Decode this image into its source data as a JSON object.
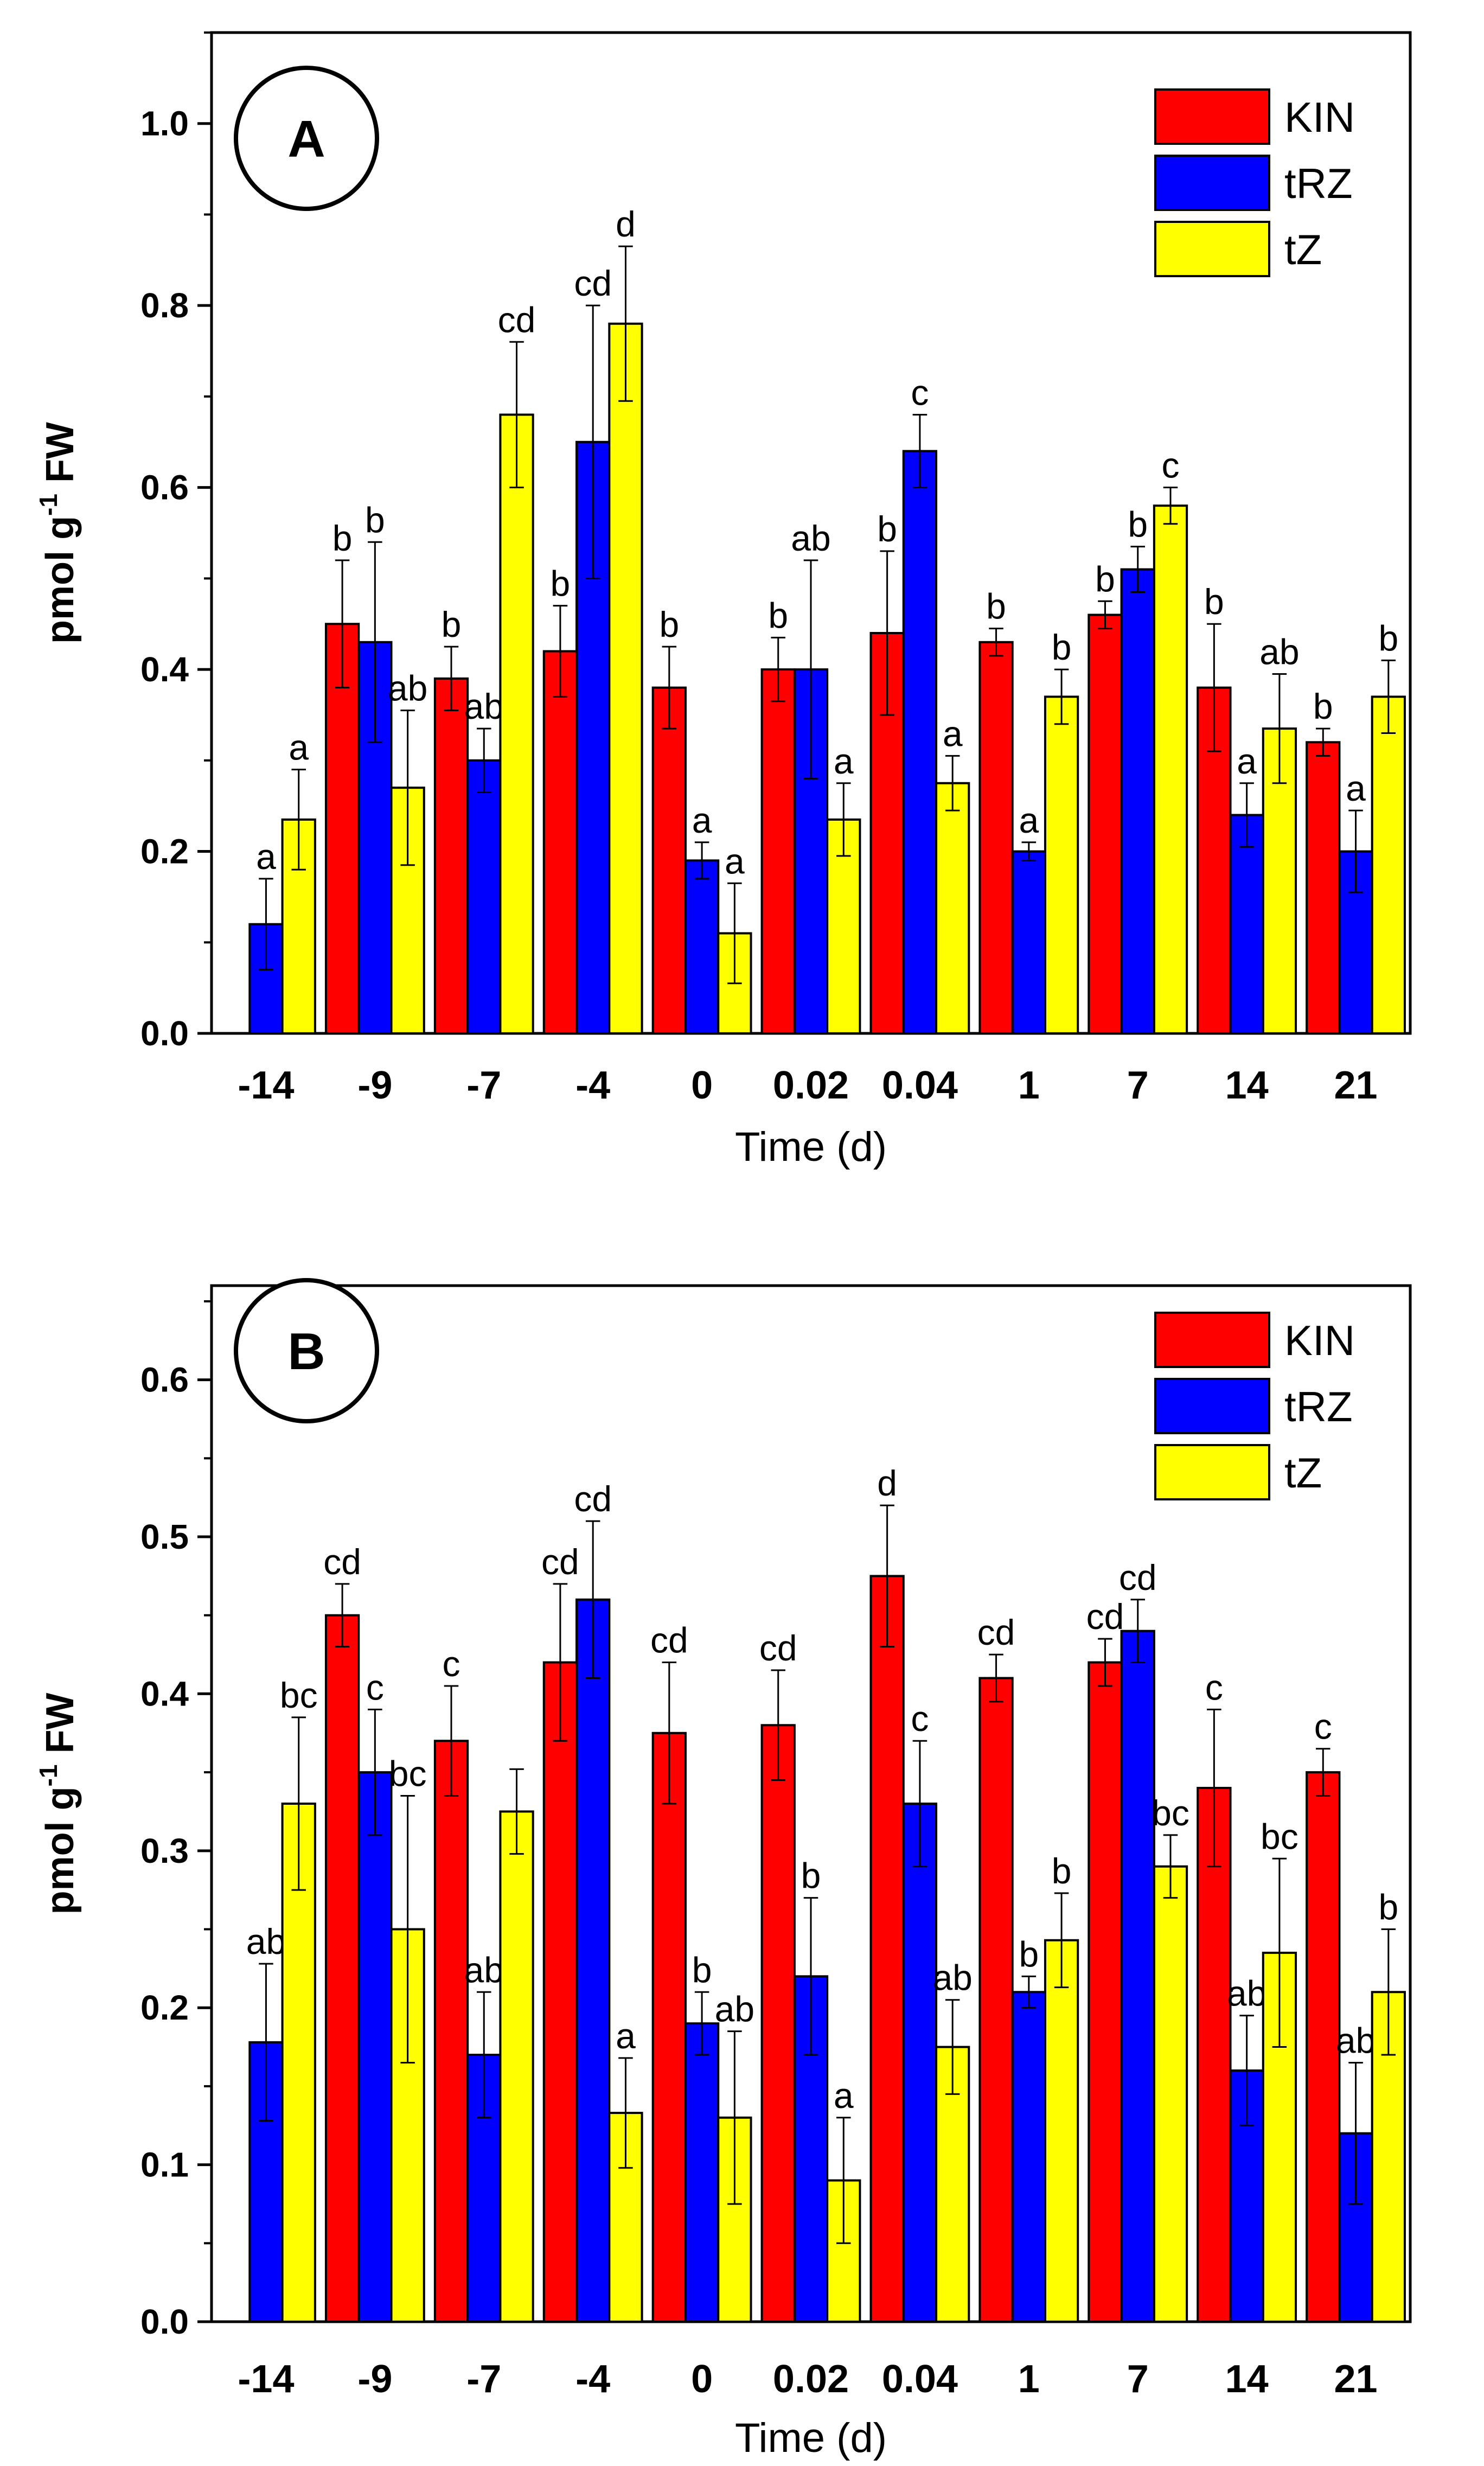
{
  "chart_data": [
    {
      "type": "bar",
      "panel": "A",
      "categories": [
        "-14",
        "-9",
        "-7",
        "-4",
        "0",
        "0.02",
        "0.04",
        "1",
        "7",
        "14",
        "21"
      ],
      "xlabel": "Time (d)",
      "ylabel_main": "pmol g",
      "ylabel_sup": "-1",
      "ylabel_tail": " FW",
      "ylim": [
        0,
        1.1
      ],
      "yticks": [
        0.0,
        0.2,
        0.4,
        0.6,
        0.8,
        1.0
      ],
      "ytick_labels": [
        "0.0",
        "0.2",
        "0.4",
        "0.6",
        "0.8",
        "1.0"
      ],
      "legend_position": "top-right",
      "series": [
        {
          "name": "KIN",
          "color": "#ff0000",
          "values": [
            null,
            0.45,
            0.39,
            0.42,
            0.38,
            0.4,
            0.44,
            0.43,
            0.46,
            0.38,
            0.32
          ],
          "errors": [
            null,
            0.07,
            0.035,
            0.05,
            0.045,
            0.035,
            0.09,
            0.015,
            0.015,
            0.07,
            0.015
          ],
          "labels": [
            "",
            "b",
            "b",
            "b",
            "b",
            "b",
            "b",
            "b",
            "b",
            "b",
            "b"
          ]
        },
        {
          "name": "tRZ",
          "color": "#0000ff",
          "values": [
            0.12,
            0.43,
            0.3,
            0.65,
            0.19,
            0.4,
            0.64,
            0.2,
            0.51,
            0.24,
            0.2
          ],
          "errors": [
            0.05,
            0.11,
            0.035,
            0.15,
            0.02,
            0.12,
            0.04,
            0.01,
            0.025,
            0.035,
            0.045
          ],
          "labels": [
            "a",
            "b",
            "ab",
            "cd",
            "a",
            "ab",
            "c",
            "a",
            "b",
            "a",
            "a"
          ]
        },
        {
          "name": "tZ",
          "color": "#ffff00",
          "values": [
            0.235,
            0.27,
            0.68,
            0.78,
            0.11,
            0.235,
            0.275,
            0.37,
            0.58,
            0.335,
            0.37
          ],
          "errors": [
            0.055,
            0.085,
            0.08,
            0.085,
            0.055,
            0.04,
            0.03,
            0.03,
            0.02,
            0.06,
            0.04
          ],
          "labels": [
            "a",
            "ab",
            "cd",
            "d",
            "a",
            "a",
            "a",
            "b",
            "c",
            "ab",
            "b"
          ]
        }
      ]
    },
    {
      "type": "bar",
      "panel": "B",
      "categories": [
        "-14",
        "-9",
        "-7",
        "-4",
        "0",
        "0.02",
        "0.04",
        "1",
        "7",
        "14",
        "21"
      ],
      "xlabel": "Time (d)",
      "ylabel_main": "pmol g",
      "ylabel_sup": "-1",
      "ylabel_tail": " FW",
      "ylim": [
        0,
        0.66
      ],
      "yticks": [
        0.0,
        0.1,
        0.2,
        0.3,
        0.4,
        0.5,
        0.6
      ],
      "ytick_labels": [
        "0.0",
        "0.1",
        "0.2",
        "0.3",
        "0.4",
        "0.5",
        "0.6"
      ],
      "legend_position": "top-right",
      "series": [
        {
          "name": "KIN",
          "color": "#ff0000",
          "values": [
            null,
            0.45,
            0.37,
            0.42,
            0.375,
            0.38,
            0.475,
            0.41,
            0.42,
            0.34,
            0.35
          ],
          "errors": [
            null,
            0.02,
            0.035,
            0.05,
            0.045,
            0.035,
            0.045,
            0.015,
            0.015,
            0.05,
            0.015
          ],
          "labels": [
            "",
            "cd",
            "c",
            "cd",
            "cd",
            "cd",
            "d",
            "cd",
            "cd",
            "c",
            "c"
          ]
        },
        {
          "name": "tRZ",
          "color": "#0000ff",
          "values": [
            0.178,
            0.35,
            0.17,
            0.46,
            0.19,
            0.22,
            0.33,
            0.21,
            0.44,
            0.16,
            0.12
          ],
          "errors": [
            0.05,
            0.04,
            0.04,
            0.05,
            0.02,
            0.05,
            0.04,
            0.01,
            0.02,
            0.035,
            0.045
          ],
          "labels": [
            "ab",
            "c",
            "ab",
            "cd",
            "b",
            "b",
            "c",
            "b",
            "cd",
            "ab",
            "ab"
          ]
        },
        {
          "name": "tZ",
          "color": "#ffff00",
          "values": [
            0.33,
            0.25,
            0.325,
            0.133,
            0.13,
            0.09,
            0.175,
            0.243,
            0.29,
            0.235,
            0.21
          ],
          "errors": [
            0.055,
            0.085,
            0.027,
            0.035,
            0.055,
            0.04,
            0.03,
            0.03,
            0.02,
            0.06,
            0.04
          ],
          "labels": [
            "bc",
            "bc",
            "",
            "a",
            "ab",
            "a",
            "ab",
            "b",
            "bc",
            "bc",
            "b"
          ]
        }
      ]
    }
  ]
}
